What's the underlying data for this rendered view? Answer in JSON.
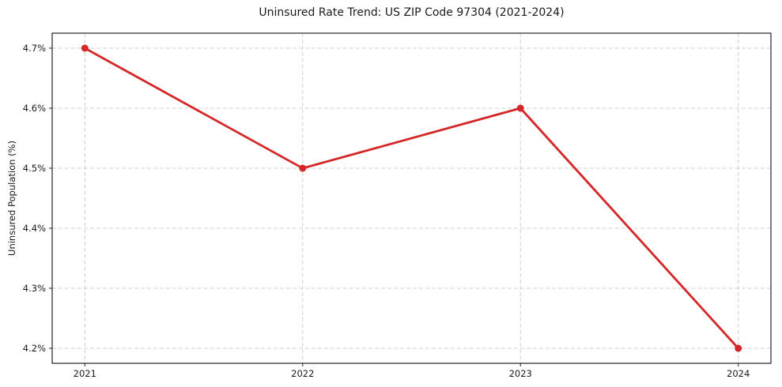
{
  "chart_data": {
    "type": "line",
    "title": "Uninsured Rate Trend: US ZIP Code 97304 (2021-2024)",
    "xlabel": "",
    "ylabel": "Uninsured Population (%)",
    "x": [
      2021,
      2022,
      2023,
      2024
    ],
    "values": [
      4.7,
      4.5,
      4.6,
      4.2
    ],
    "xticks": [
      2021,
      2022,
      2023,
      2024
    ],
    "xtick_labels": [
      "2021",
      "2022",
      "2023",
      "2024"
    ],
    "yticks": [
      4.2,
      4.3,
      4.4,
      4.5,
      4.6,
      4.7
    ],
    "ytick_labels": [
      "4.2%",
      "4.3%",
      "4.4%",
      "4.5%",
      "4.6%",
      "4.7%"
    ],
    "xlim": [
      2020.85,
      2024.15
    ],
    "ylim": [
      4.175,
      4.725
    ],
    "grid": "dashed",
    "legend": "none",
    "line_color": "#d62728",
    "grid_color": "#d0d0d0",
    "spine_color": "#262626",
    "text_color": "#1a1a1a"
  }
}
